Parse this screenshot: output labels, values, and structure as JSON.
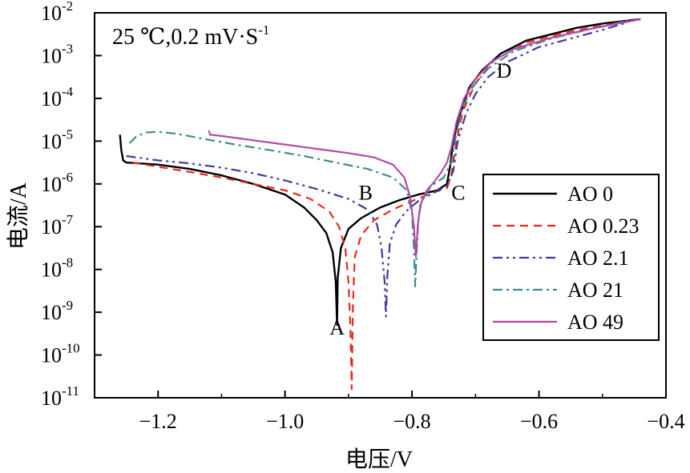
{
  "chart_data": {
    "type": "line",
    "title": "",
    "condition_label": "25 ℃,0.2 mV·S",
    "condition_sup": "-1",
    "xlabel": "电压/V",
    "ylabel": "电流/A",
    "xlim": [
      -1.3,
      -0.4
    ],
    "ylim_exp": [
      -11,
      -2
    ],
    "yscale": "log",
    "x_ticks": [
      {
        "value": -1.2,
        "label": "−1.2"
      },
      {
        "value": -1.0,
        "label": "−1.0"
      },
      {
        "value": -0.8,
        "label": "−0.8"
      },
      {
        "value": -0.6,
        "label": "−0.6"
      },
      {
        "value": -0.4,
        "label": "−0.4"
      }
    ],
    "y_ticks": [
      {
        "exp": -2,
        "base": "10",
        "sup": "-2"
      },
      {
        "exp": -3,
        "base": "10",
        "sup": "-3"
      },
      {
        "exp": -4,
        "base": "10",
        "sup": "-4"
      },
      {
        "exp": -5,
        "base": "10",
        "sup": "-5"
      },
      {
        "exp": -6,
        "base": "10",
        "sup": "-6"
      },
      {
        "exp": -7,
        "base": "10",
        "sup": "-7"
      },
      {
        "exp": -8,
        "base": "10",
        "sup": "-8"
      },
      {
        "exp": -9,
        "base": "10",
        "sup": "-9"
      },
      {
        "exp": -10,
        "base": "10",
        "sup": "-10"
      },
      {
        "exp": -11,
        "base": "10",
        "sup": "-11"
      }
    ],
    "legend_position": "right",
    "series": [
      {
        "name": "AO 0",
        "color": "#000000",
        "dash": "",
        "width": 2.4,
        "points": [
          [
            -1.26,
            -4.85
          ],
          [
            -1.258,
            -5.2
          ],
          [
            -1.255,
            -5.45
          ],
          [
            -1.25,
            -5.5
          ],
          [
            -1.2,
            -5.55
          ],
          [
            -1.15,
            -5.65
          ],
          [
            -1.1,
            -5.8
          ],
          [
            -1.05,
            -6.0
          ],
          [
            -1.0,
            -6.25
          ],
          [
            -0.97,
            -6.55
          ],
          [
            -0.95,
            -6.85
          ],
          [
            -0.935,
            -7.15
          ],
          [
            -0.925,
            -7.6
          ],
          [
            -0.92,
            -8.3
          ],
          [
            -0.918,
            -9.3
          ],
          [
            -0.917,
            -8.2
          ],
          [
            -0.912,
            -7.5
          ],
          [
            -0.9,
            -7.05
          ],
          [
            -0.88,
            -6.8
          ],
          [
            -0.85,
            -6.55
          ],
          [
            -0.82,
            -6.38
          ],
          [
            -0.79,
            -6.25
          ],
          [
            -0.76,
            -6.15
          ],
          [
            -0.745,
            -6.0
          ],
          [
            -0.74,
            -5.6
          ],
          [
            -0.735,
            -5.0
          ],
          [
            -0.725,
            -4.4
          ],
          [
            -0.71,
            -3.75
          ],
          [
            -0.69,
            -3.35
          ],
          [
            -0.66,
            -2.95
          ],
          [
            -0.62,
            -2.65
          ],
          [
            -0.58,
            -2.5
          ],
          [
            -0.54,
            -2.35
          ],
          [
            -0.5,
            -2.25
          ],
          [
            -0.44,
            -2.15
          ]
        ]
      },
      {
        "name": "AO 0.23",
        "color": "#e8291c",
        "dash": "10,7",
        "width": 2.2,
        "points": [
          [
            -1.24,
            -5.5
          ],
          [
            -1.2,
            -5.6
          ],
          [
            -1.15,
            -5.72
          ],
          [
            -1.1,
            -5.85
          ],
          [
            -1.05,
            -6.0
          ],
          [
            -1.0,
            -6.15
          ],
          [
            -0.96,
            -6.35
          ],
          [
            -0.93,
            -6.65
          ],
          [
            -0.915,
            -7.0
          ],
          [
            -0.905,
            -7.5
          ],
          [
            -0.9,
            -8.3
          ],
          [
            -0.897,
            -9.4
          ],
          [
            -0.895,
            -10.8
          ],
          [
            -0.893,
            -8.8
          ],
          [
            -0.89,
            -7.7
          ],
          [
            -0.88,
            -7.2
          ],
          [
            -0.86,
            -6.85
          ],
          [
            -0.83,
            -6.6
          ],
          [
            -0.8,
            -6.4
          ],
          [
            -0.77,
            -6.22
          ],
          [
            -0.745,
            -6.1
          ],
          [
            -0.738,
            -5.8
          ],
          [
            -0.73,
            -5.0
          ],
          [
            -0.72,
            -4.3
          ],
          [
            -0.7,
            -3.65
          ],
          [
            -0.67,
            -3.1
          ],
          [
            -0.62,
            -2.7
          ],
          [
            -0.57,
            -2.5
          ],
          [
            -0.52,
            -2.35
          ],
          [
            -0.46,
            -2.2
          ]
        ]
      },
      {
        "name": "AO 2.1",
        "color": "#3c3c9c",
        "dash": "12,5,3,5,3,5",
        "width": 2.2,
        "points": [
          [
            -1.25,
            -5.35
          ],
          [
            -1.2,
            -5.45
          ],
          [
            -1.15,
            -5.52
          ],
          [
            -1.1,
            -5.62
          ],
          [
            -1.05,
            -5.75
          ],
          [
            -1.0,
            -5.92
          ],
          [
            -0.95,
            -6.12
          ],
          [
            -0.9,
            -6.35
          ],
          [
            -0.87,
            -6.6
          ],
          [
            -0.855,
            -6.95
          ],
          [
            -0.848,
            -7.5
          ],
          [
            -0.843,
            -8.3
          ],
          [
            -0.841,
            -9.1
          ],
          [
            -0.839,
            -8.2
          ],
          [
            -0.835,
            -7.4
          ],
          [
            -0.825,
            -6.95
          ],
          [
            -0.81,
            -6.65
          ],
          [
            -0.79,
            -6.4
          ],
          [
            -0.765,
            -6.2
          ],
          [
            -0.745,
            -6.05
          ],
          [
            -0.735,
            -5.7
          ],
          [
            -0.728,
            -5.0
          ],
          [
            -0.715,
            -4.35
          ],
          [
            -0.7,
            -3.9
          ],
          [
            -0.68,
            -3.5
          ],
          [
            -0.65,
            -3.15
          ],
          [
            -0.6,
            -2.8
          ],
          [
            -0.55,
            -2.6
          ],
          [
            -0.5,
            -2.4
          ],
          [
            -0.46,
            -2.22
          ]
        ]
      },
      {
        "name": "AO 21",
        "color": "#3e8c8c",
        "dash": "12,5,3,5",
        "width": 2.2,
        "points": [
          [
            -1.245,
            -5.05
          ],
          [
            -1.235,
            -4.9
          ],
          [
            -1.22,
            -4.8
          ],
          [
            -1.2,
            -4.78
          ],
          [
            -1.17,
            -4.83
          ],
          [
            -1.12,
            -4.97
          ],
          [
            -1.07,
            -5.1
          ],
          [
            -1.02,
            -5.22
          ],
          [
            -0.97,
            -5.35
          ],
          [
            -0.92,
            -5.5
          ],
          [
            -0.87,
            -5.65
          ],
          [
            -0.83,
            -5.85
          ],
          [
            -0.808,
            -6.15
          ],
          [
            -0.8,
            -6.7
          ],
          [
            -0.797,
            -7.5
          ],
          [
            -0.795,
            -8.4
          ],
          [
            -0.793,
            -7.7
          ],
          [
            -0.79,
            -6.85
          ],
          [
            -0.785,
            -6.4
          ],
          [
            -0.77,
            -6.05
          ],
          [
            -0.75,
            -5.85
          ],
          [
            -0.738,
            -5.5
          ],
          [
            -0.73,
            -4.8
          ],
          [
            -0.72,
            -4.2
          ],
          [
            -0.705,
            -3.75
          ],
          [
            -0.68,
            -3.3
          ],
          [
            -0.64,
            -2.9
          ],
          [
            -0.58,
            -2.6
          ],
          [
            -0.52,
            -2.38
          ],
          [
            -0.46,
            -2.18
          ]
        ]
      },
      {
        "name": "AO 49",
        "color": "#b04aa8",
        "dash": "",
        "width": 2.2,
        "points": [
          [
            -1.12,
            -4.75
          ],
          [
            -1.118,
            -4.85
          ],
          [
            -1.1,
            -4.88
          ],
          [
            -1.05,
            -4.98
          ],
          [
            -1.0,
            -5.08
          ],
          [
            -0.95,
            -5.18
          ],
          [
            -0.9,
            -5.28
          ],
          [
            -0.86,
            -5.38
          ],
          [
            -0.83,
            -5.55
          ],
          [
            -0.812,
            -5.85
          ],
          [
            -0.803,
            -6.3
          ],
          [
            -0.797,
            -7.0
          ],
          [
            -0.794,
            -7.7
          ],
          [
            -0.791,
            -7.0
          ],
          [
            -0.787,
            -6.5
          ],
          [
            -0.778,
            -6.18
          ],
          [
            -0.765,
            -5.95
          ],
          [
            -0.755,
            -5.75
          ],
          [
            -0.745,
            -5.5
          ],
          [
            -0.738,
            -5.15
          ],
          [
            -0.73,
            -4.55
          ],
          [
            -0.718,
            -4.0
          ],
          [
            -0.7,
            -3.55
          ],
          [
            -0.675,
            -3.15
          ],
          [
            -0.64,
            -2.85
          ],
          [
            -0.58,
            -2.58
          ],
          [
            -0.52,
            -2.38
          ],
          [
            -0.44,
            -2.15
          ]
        ]
      }
    ],
    "annotations": [
      {
        "text": "A",
        "x": -0.918,
        "y": -9.35
      },
      {
        "text": "B",
        "x": -0.873,
        "y": -6.2
      },
      {
        "text": "C",
        "x": -0.727,
        "y": -6.2
      },
      {
        "text": "D",
        "x": -0.655,
        "y": -3.35
      }
    ]
  }
}
